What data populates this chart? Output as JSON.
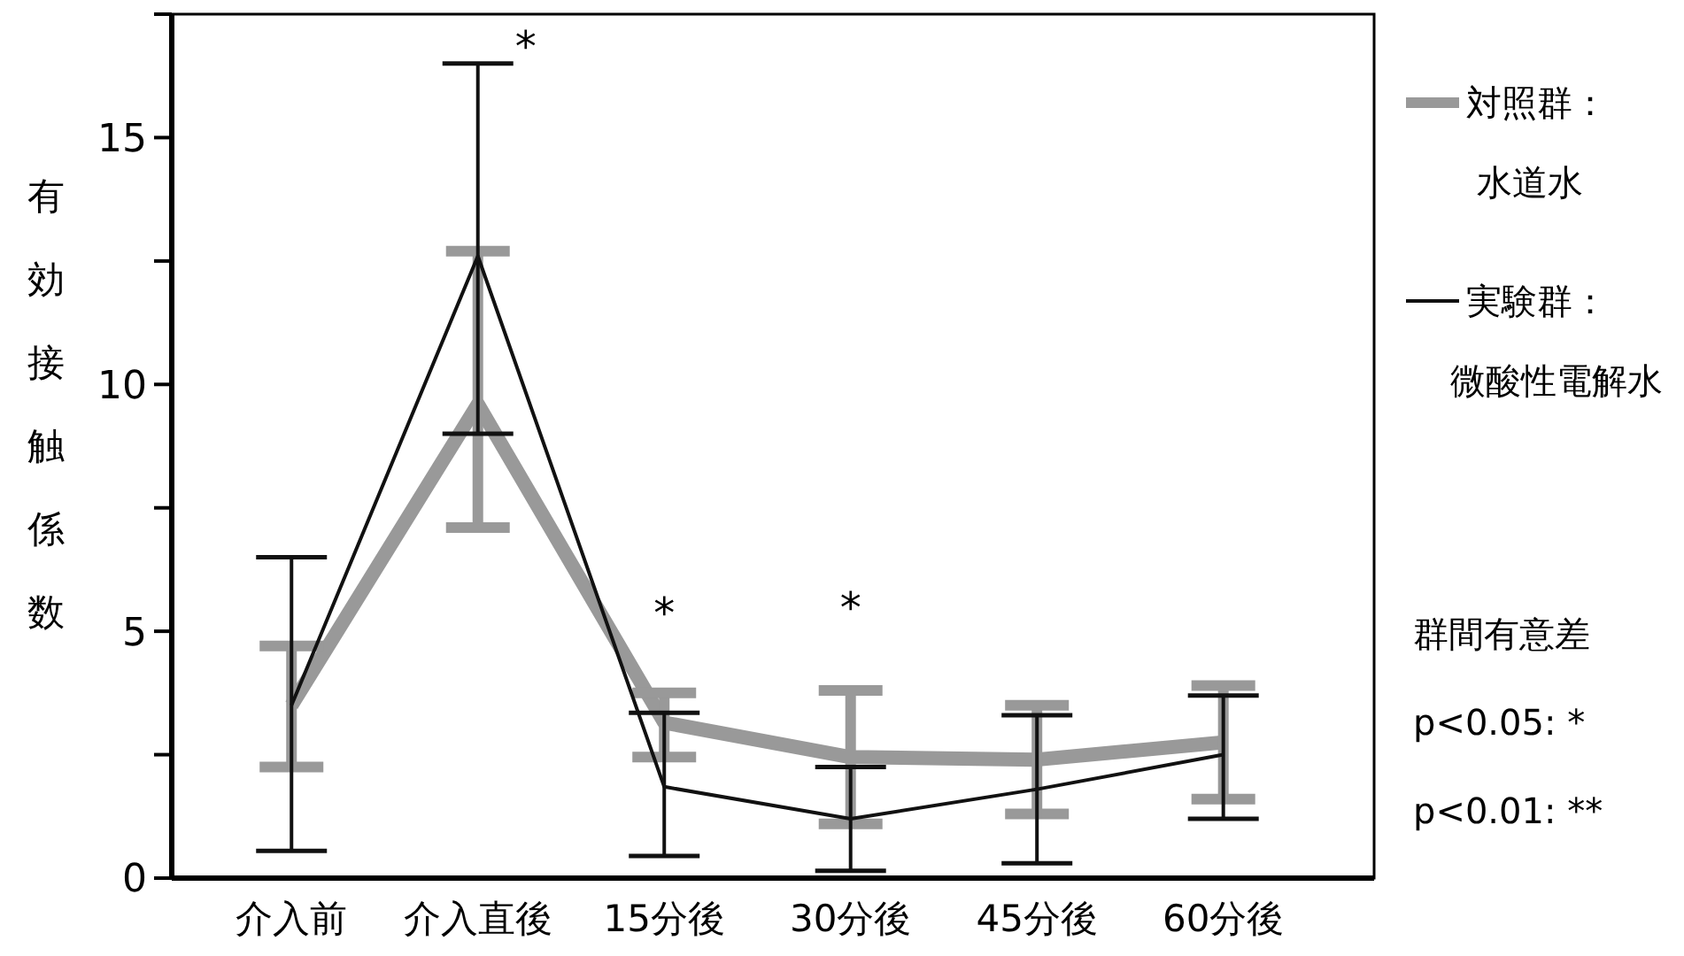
{
  "chart_data": {
    "type": "line",
    "ylabel": "有効接触係数",
    "categories": [
      "介入前",
      "介入直後",
      "15分後",
      "30分後",
      "45分後",
      "60分後"
    ],
    "ylim": [
      0,
      17.5
    ],
    "yticks": [
      0,
      {
        "value": 2.5,
        "label": null
      },
      5,
      {
        "value": 7.5,
        "label": null
      },
      10,
      {
        "value": 12.5,
        "label": null
      },
      15,
      {
        "value": 17.5,
        "label": null
      }
    ],
    "grid": false,
    "legend": "right",
    "marker": "none",
    "line_style": "solid",
    "series": [
      {
        "name": "対照群：水道水",
        "color": "#999999",
        "values": [
          3.5,
          9.6,
          3.15,
          2.45,
          2.4,
          2.75
        ],
        "errors": [
          [
            2.25,
            4.7
          ],
          [
            7.1,
            12.7
          ],
          [
            2.45,
            3.75
          ],
          [
            1.1,
            3.8
          ],
          [
            1.3,
            3.5
          ],
          [
            1.6,
            3.9
          ]
        ]
      },
      {
        "name": "実験群：微酸性電解水",
        "color": "#111111",
        "values": [
          3.5,
          12.6,
          1.85,
          1.2,
          1.8,
          2.5
        ],
        "errors": [
          [
            0.55,
            6.5
          ],
          [
            9.0,
            16.5
          ],
          [
            0.45,
            3.35
          ],
          [
            0.15,
            2.25
          ],
          [
            0.3,
            3.3
          ],
          [
            1.2,
            3.7
          ]
        ]
      }
    ],
    "annotations": [
      "*",
      "*",
      "*",
      "群間有意差",
      "p<0.05: *",
      "p<0.01: **"
    ]
  }
}
